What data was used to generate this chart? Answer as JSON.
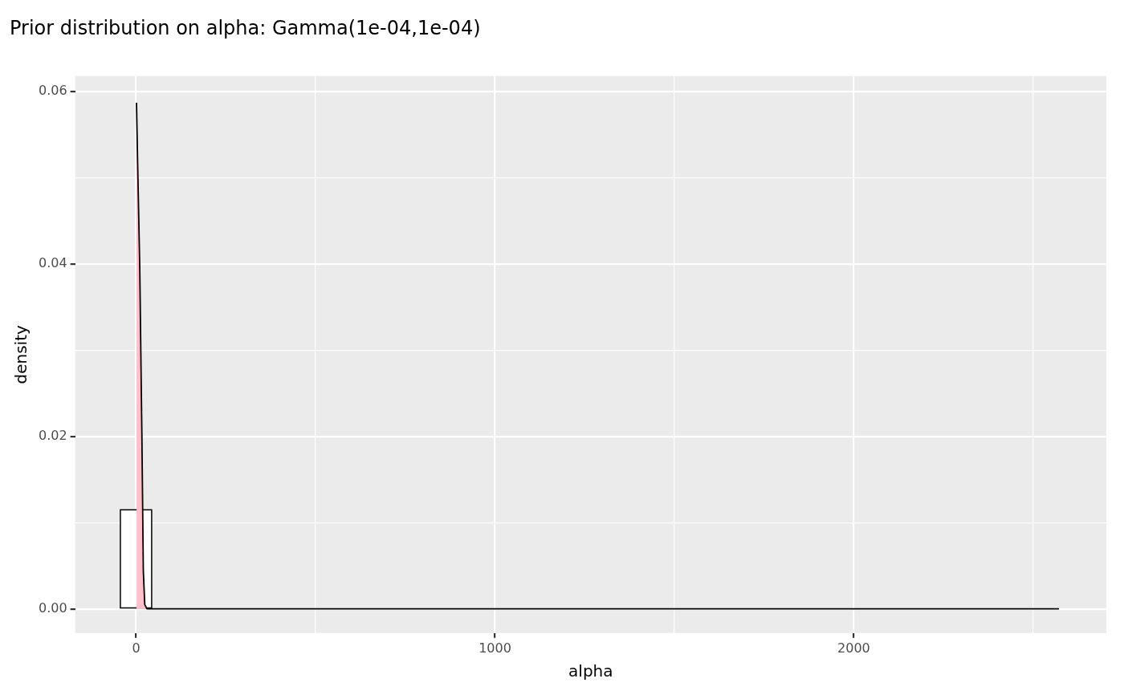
{
  "chart_data": {
    "type": "histogram",
    "title": "Prior distribution on alpha: Gamma(1e-04,1e-04)",
    "xlabel": "alpha",
    "ylabel": "density",
    "bins": [
      -44,
      43.2,
      130.4,
      217.6,
      304.8,
      392,
      479.2,
      566.4,
      653.6,
      740.8,
      828,
      915.2,
      1002.4,
      1089.6,
      1176.8,
      1264,
      1351.2,
      1438.4,
      1525.6,
      1612.8,
      1700,
      1787.2,
      1874.4,
      1961.6,
      2048.8,
      2136,
      2223.2,
      2310.4,
      2397.6,
      2484.8,
      2572
    ],
    "values": [
      0.0115,
      0,
      0,
      0,
      0,
      0,
      0,
      0,
      0,
      0,
      0,
      0,
      0,
      0,
      0,
      0,
      0,
      0,
      0,
      0,
      0,
      0,
      0,
      0,
      0,
      0,
      0,
      0,
      0,
      0
    ],
    "color": "#ffffff",
    "series": [
      {
        "type": "area",
        "color": "#ffc0cb",
        "x": [
          1,
          4,
          10,
          16,
          20,
          24,
          30,
          2572
        ],
        "values": [
          0.0587,
          0.052,
          0.0397,
          0.02,
          0.0044,
          0.0005,
          0,
          0
        ]
      }
    ],
    "xlim": [
      -170,
      2704
    ],
    "xticks": [
      {
        "value": 0,
        "label": "0"
      },
      {
        "value": 500,
        "label": null
      },
      {
        "value": 1000,
        "label": "1000"
      },
      {
        "value": 1500,
        "label": null
      },
      {
        "value": 2000,
        "label": "2000"
      },
      {
        "value": 2500,
        "label": null
      }
    ],
    "ylim": [
      -0.0028,
      0.0618
    ],
    "yticks": [
      {
        "value": 0,
        "label": "0.00"
      },
      {
        "value": 0.01,
        "label": null
      },
      {
        "value": 0.02,
        "label": "0.02"
      },
      {
        "value": 0.03,
        "label": null
      },
      {
        "value": 0.04,
        "label": "0.04"
      },
      {
        "value": 0.05,
        "label": null
      },
      {
        "value": 0.06,
        "label": "0.06"
      }
    ],
    "grid": true,
    "legend": false
  }
}
